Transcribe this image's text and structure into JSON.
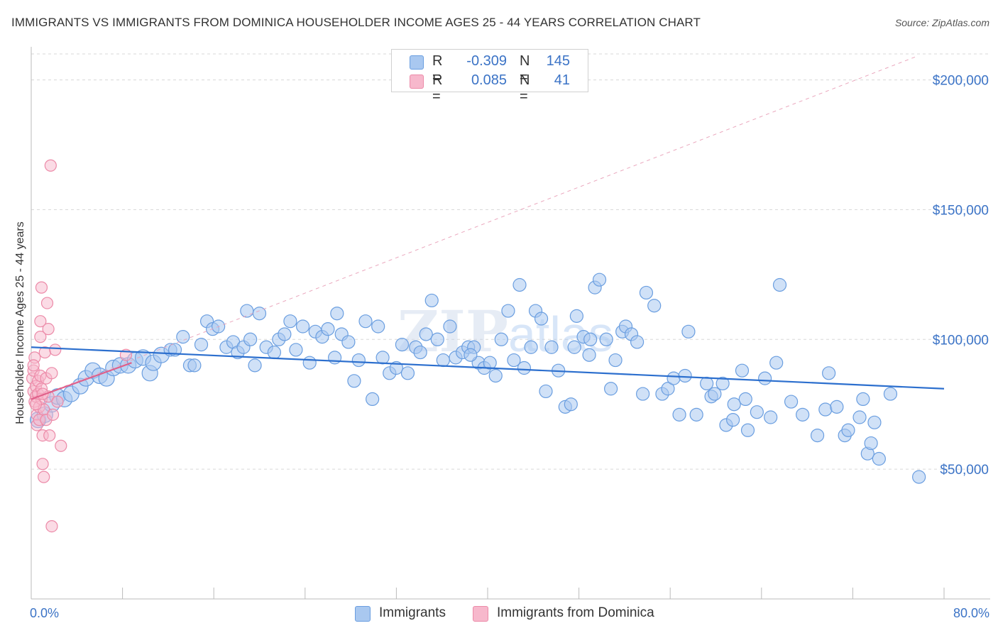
{
  "title": "IMMIGRANTS VS IMMIGRANTS FROM DOMINICA HOUSEHOLDER INCOME AGES 25 - 44 YEARS CORRELATION CHART",
  "source": "Source: ZipAtlas.com",
  "watermark": "ZIPatlas",
  "legend": {
    "rows": [
      {
        "r_label": "R =",
        "r_value": "-0.309",
        "n_label": "N =",
        "n_value": "145"
      },
      {
        "r_label": "R =",
        "r_value": "0.085",
        "n_label": "N =",
        "n_value": "41"
      }
    ]
  },
  "bottom_legend": [
    "Immigrants",
    "Immigrants from Dominica"
  ],
  "colors": {
    "immigrants_fill": "#a9c8f0",
    "immigrants_stroke": "#6a9ee0",
    "immigrants_line": "#2c6fce",
    "dominica_fill": "#f7b8cc",
    "dominica_stroke": "#ec8aa8",
    "dominica_line": "#e0608a",
    "tick_label": "#3b73c6",
    "grid": "#d8d8d8"
  },
  "chart_data": {
    "type": "scatter",
    "title": "IMMIGRANTS VS IMMIGRANTS FROM DOMINICA HOUSEHOLDER INCOME AGES 25 - 44 YEARS CORRELATION CHART",
    "xlabel": "",
    "ylabel": "Householder Income Ages 25 - 44 years",
    "xlim": [
      0,
      80
    ],
    "ylim": [
      0,
      210000
    ],
    "x_tick_labels": [
      "0.0%",
      "80.0%"
    ],
    "y_ticks": [
      50000,
      100000,
      150000,
      200000
    ],
    "y_tick_labels": [
      "$50,000",
      "$100,000",
      "$150,000",
      "$200,000"
    ],
    "grid": true,
    "legend_position": "top-center",
    "series": [
      {
        "name": "Immigrants",
        "r": -0.309,
        "n": 145,
        "trend": {
          "x": [
            0,
            80
          ],
          "y": [
            97000,
            81000
          ]
        },
        "points": [
          [
            0.6,
            69000
          ],
          [
            1.2,
            71000
          ],
          [
            1.8,
            75000
          ],
          [
            2.3,
            78000
          ],
          [
            2.9,
            77000
          ],
          [
            3.5,
            79000
          ],
          [
            4.3,
            82000
          ],
          [
            4.8,
            85000
          ],
          [
            5.4,
            88000
          ],
          [
            6.0,
            86000
          ],
          [
            6.6,
            85000
          ],
          [
            7.2,
            89000
          ],
          [
            7.8,
            90000
          ],
          [
            8.5,
            90000
          ],
          [
            9.1,
            92000
          ],
          [
            9.8,
            93000
          ],
          [
            10.4,
            87000
          ],
          [
            10.7,
            91000
          ],
          [
            11.4,
            94000
          ],
          [
            12.2,
            96000
          ],
          [
            12.6,
            96000
          ],
          [
            13.3,
            101000
          ],
          [
            13.9,
            90000
          ],
          [
            14.3,
            90000
          ],
          [
            14.9,
            98000
          ],
          [
            15.4,
            107000
          ],
          [
            15.9,
            104000
          ],
          [
            16.4,
            105000
          ],
          [
            17.1,
            97000
          ],
          [
            17.7,
            99000
          ],
          [
            18.1,
            95000
          ],
          [
            18.6,
            97000
          ],
          [
            19.2,
            100000
          ],
          [
            19.6,
            90000
          ],
          [
            20.0,
            110000
          ],
          [
            20.6,
            97000
          ],
          [
            21.3,
            95000
          ],
          [
            21.7,
            100000
          ],
          [
            22.2,
            102000
          ],
          [
            22.7,
            107000
          ],
          [
            23.2,
            96000
          ],
          [
            23.8,
            105000
          ],
          [
            24.4,
            91000
          ],
          [
            24.9,
            103000
          ],
          [
            25.5,
            101000
          ],
          [
            26.0,
            104000
          ],
          [
            26.6,
            93000
          ],
          [
            27.2,
            102000
          ],
          [
            27.8,
            99000
          ],
          [
            28.3,
            84000
          ],
          [
            28.7,
            92000
          ],
          [
            29.3,
            107000
          ],
          [
            29.9,
            77000
          ],
          [
            30.4,
            105000
          ],
          [
            30.8,
            93000
          ],
          [
            31.4,
            87000
          ],
          [
            32.0,
            89000
          ],
          [
            32.5,
            98000
          ],
          [
            33.0,
            87000
          ],
          [
            33.7,
            97000
          ],
          [
            34.1,
            95000
          ],
          [
            34.6,
            102000
          ],
          [
            35.1,
            115000
          ],
          [
            35.6,
            100000
          ],
          [
            36.1,
            92000
          ],
          [
            36.7,
            105000
          ],
          [
            37.2,
            93000
          ],
          [
            37.8,
            95000
          ],
          [
            38.3,
            97000
          ],
          [
            38.8,
            97000
          ],
          [
            39.2,
            91000
          ],
          [
            39.7,
            89000
          ],
          [
            40.2,
            91000
          ],
          [
            40.7,
            86000
          ],
          [
            41.2,
            100000
          ],
          [
            41.8,
            111000
          ],
          [
            42.3,
            92000
          ],
          [
            42.8,
            121000
          ],
          [
            43.2,
            89000
          ],
          [
            43.8,
            97000
          ],
          [
            44.2,
            111000
          ],
          [
            44.7,
            108000
          ],
          [
            45.1,
            80000
          ],
          [
            45.6,
            97000
          ],
          [
            46.2,
            88000
          ],
          [
            46.8,
            74000
          ],
          [
            47.3,
            75000
          ],
          [
            47.6,
            97000
          ],
          [
            47.8,
            109000
          ],
          [
            48.4,
            101000
          ],
          [
            48.9,
            94000
          ],
          [
            49.4,
            120000
          ],
          [
            49.8,
            123000
          ],
          [
            50.4,
            100000
          ],
          [
            50.8,
            81000
          ],
          [
            51.2,
            92000
          ],
          [
            51.8,
            103000
          ],
          [
            52.1,
            105000
          ],
          [
            52.6,
            102000
          ],
          [
            53.1,
            99000
          ],
          [
            53.6,
            79000
          ],
          [
            53.9,
            118000
          ],
          [
            54.6,
            113000
          ],
          [
            55.3,
            79000
          ],
          [
            55.8,
            81000
          ],
          [
            56.3,
            85000
          ],
          [
            56.8,
            71000
          ],
          [
            57.3,
            86000
          ],
          [
            57.6,
            103000
          ],
          [
            58.3,
            71000
          ],
          [
            59.2,
            83000
          ],
          [
            59.6,
            78000
          ],
          [
            59.9,
            79000
          ],
          [
            60.6,
            83000
          ],
          [
            60.9,
            67000
          ],
          [
            61.6,
            75000
          ],
          [
            62.3,
            88000
          ],
          [
            62.6,
            77000
          ],
          [
            62.8,
            65000
          ],
          [
            63.6,
            72000
          ],
          [
            64.3,
            85000
          ],
          [
            64.8,
            70000
          ],
          [
            65.3,
            91000
          ],
          [
            65.6,
            121000
          ],
          [
            66.6,
            76000
          ],
          [
            67.6,
            71000
          ],
          [
            68.9,
            63000
          ],
          [
            69.6,
            73000
          ],
          [
            69.9,
            87000
          ],
          [
            70.6,
            74000
          ],
          [
            71.3,
            63000
          ],
          [
            71.6,
            65000
          ],
          [
            72.6,
            70000
          ],
          [
            72.9,
            77000
          ],
          [
            73.3,
            56000
          ],
          [
            73.6,
            60000
          ],
          [
            73.9,
            68000
          ],
          [
            74.3,
            54000
          ],
          [
            75.3,
            79000
          ],
          [
            77.8,
            47000
          ],
          [
            61.5,
            69000
          ],
          [
            38.5,
            94000
          ],
          [
            49.0,
            100000
          ],
          [
            26.8,
            110000
          ],
          [
            18.9,
            111000
          ]
        ]
      },
      {
        "name": "Immigrants from Dominica",
        "r": 0.085,
        "n": 41,
        "trend": {
          "x": [
            0,
            8.8
          ],
          "y": [
            77000,
            91000
          ]
        },
        "points": [
          [
            0.1,
            85000
          ],
          [
            0.2,
            80000
          ],
          [
            0.2,
            88000
          ],
          [
            0.3,
            93000
          ],
          [
            0.3,
            76000
          ],
          [
            0.4,
            82000
          ],
          [
            0.4,
            78000
          ],
          [
            0.5,
            71000
          ],
          [
            0.5,
            67000
          ],
          [
            0.6,
            84000
          ],
          [
            0.6,
            79000
          ],
          [
            0.7,
            74000
          ],
          [
            0.7,
            69000
          ],
          [
            0.8,
            107000
          ],
          [
            0.8,
            101000
          ],
          [
            0.8,
            86000
          ],
          [
            0.9,
            120000
          ],
          [
            0.9,
            81000
          ],
          [
            0.9,
            77000
          ],
          [
            1.0,
            63000
          ],
          [
            1.0,
            52000
          ],
          [
            1.1,
            47000
          ],
          [
            1.1,
            73000
          ],
          [
            1.2,
            95000
          ],
          [
            1.3,
            85000
          ],
          [
            1.3,
            69000
          ],
          [
            1.4,
            114000
          ],
          [
            1.5,
            104000
          ],
          [
            1.5,
            78000
          ],
          [
            1.6,
            63000
          ],
          [
            1.7,
            167000
          ],
          [
            1.8,
            87000
          ],
          [
            1.9,
            71000
          ],
          [
            2.1,
            96000
          ],
          [
            2.3,
            76000
          ],
          [
            2.6,
            59000
          ],
          [
            0.4,
            75000
          ],
          [
            1.0,
            79000
          ],
          [
            0.2,
            90000
          ],
          [
            1.8,
            28000
          ],
          [
            8.3,
            94000
          ]
        ]
      }
    ]
  }
}
